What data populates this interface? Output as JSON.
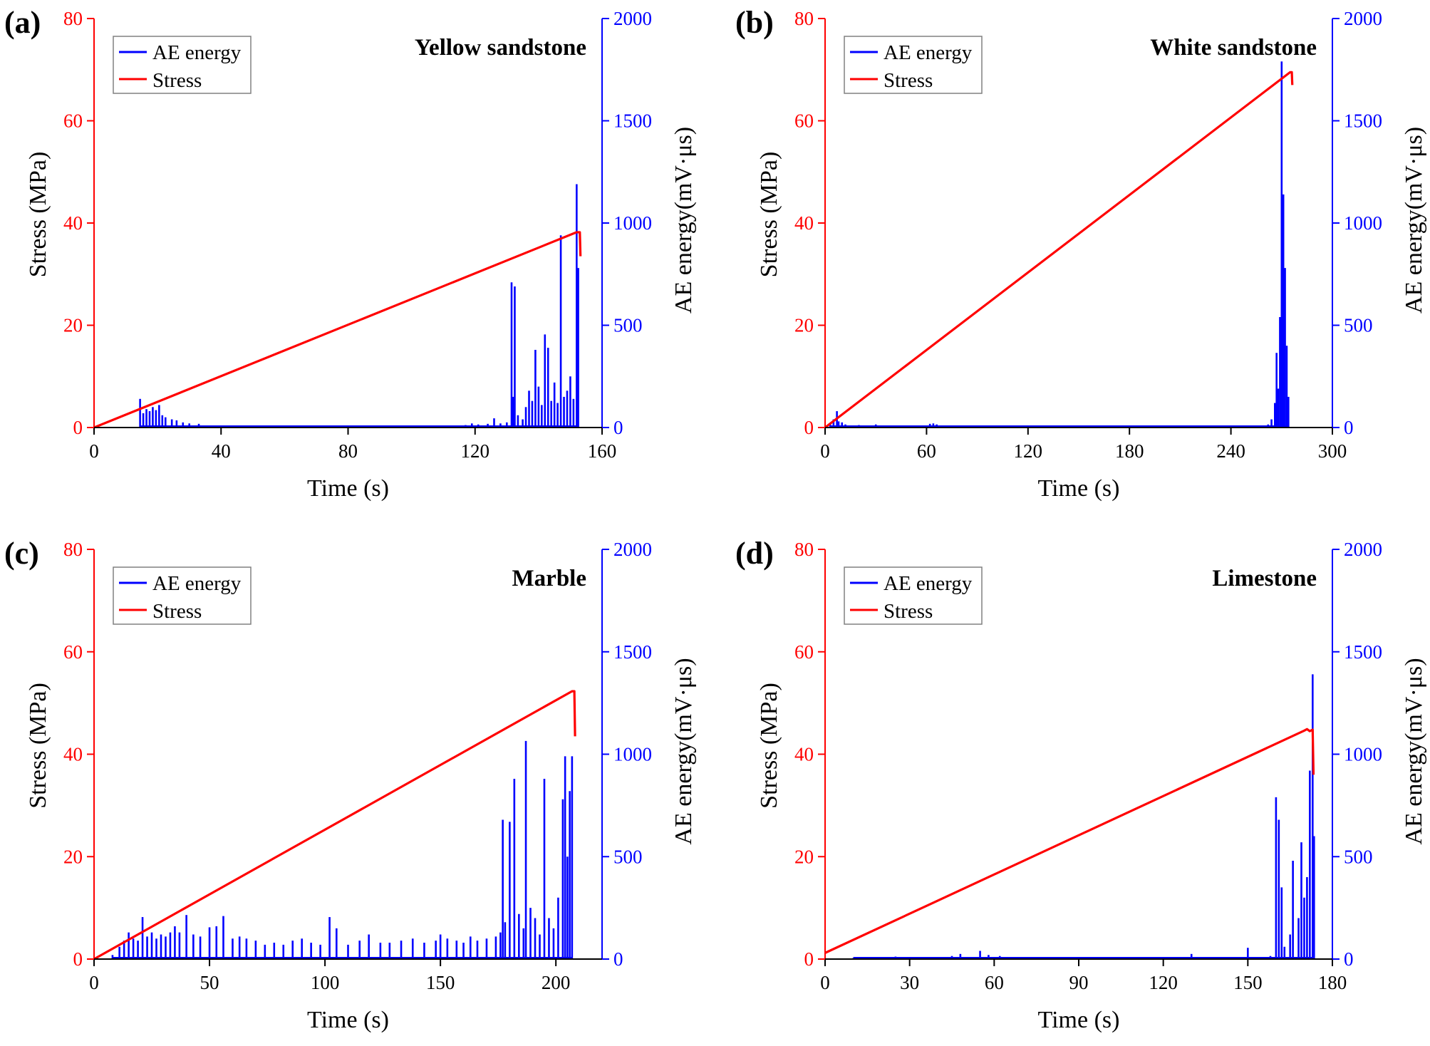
{
  "colors": {
    "stress": "#ff0000",
    "ae": "#0000ff",
    "axis": "#000000",
    "legend_border": "#808080"
  },
  "chart_data": [
    {
      "type": "line",
      "panel_label": "(a)",
      "title": "Yellow sandstone",
      "xlabel": "Time (s)",
      "ylabel": "Stress (MPa)",
      "y2label": "AE energy(mV·μs)",
      "xlim": [
        0,
        160
      ],
      "ylim": [
        0,
        80
      ],
      "y2lim": [
        0,
        2000
      ],
      "xticks": [
        0,
        40,
        80,
        120,
        160
      ],
      "yticks": [
        0,
        20,
        40,
        60,
        80
      ],
      "y2ticks": [
        0,
        500,
        1000,
        1500,
        2000
      ],
      "legend": [
        "AE energy",
        "Stress"
      ],
      "series": [
        {
          "name": "Stress",
          "axis": "left",
          "x": [
            0,
            152,
            153,
            153.2
          ],
          "y": [
            0,
            38.2,
            38.2,
            33.5
          ]
        },
        {
          "name": "AE energy",
          "axis": "right",
          "spikes": [
            [
              14.5,
              140
            ],
            [
              15.5,
              70
            ],
            [
              16.5,
              90
            ],
            [
              17.5,
              80
            ],
            [
              18.5,
              100
            ],
            [
              19.5,
              85
            ],
            [
              20.5,
              110
            ],
            [
              21.5,
              60
            ],
            [
              22.5,
              50
            ],
            [
              24.5,
              40
            ],
            [
              26,
              35
            ],
            [
              28,
              25
            ],
            [
              30,
              20
            ],
            [
              33,
              18
            ],
            [
              36,
              10
            ],
            [
              52,
              8
            ],
            [
              60,
              5
            ],
            [
              85,
              5
            ],
            [
              95,
              6
            ],
            [
              105,
              7
            ],
            [
              110,
              8
            ],
            [
              117,
              12
            ],
            [
              119,
              20
            ],
            [
              121,
              15
            ],
            [
              124,
              18
            ],
            [
              126,
              45
            ],
            [
              128,
              20
            ],
            [
              130,
              25
            ],
            [
              131.5,
              710
            ],
            [
              132,
              150
            ],
            [
              132.5,
              690
            ],
            [
              133.5,
              60
            ],
            [
              135,
              40
            ],
            [
              136,
              100
            ],
            [
              137,
              180
            ],
            [
              138,
              130
            ],
            [
              139,
              380
            ],
            [
              140,
              200
            ],
            [
              141,
              110
            ],
            [
              142,
              455
            ],
            [
              143,
              390
            ],
            [
              144,
              130
            ],
            [
              145,
              220
            ],
            [
              146,
              120
            ],
            [
              147,
              940
            ],
            [
              148,
              150
            ],
            [
              149,
              180
            ],
            [
              150,
              250
            ],
            [
              151,
              140
            ],
            [
              152,
              1190
            ],
            [
              152.5,
              780
            ]
          ]
        }
      ]
    },
    {
      "type": "line",
      "panel_label": "(b)",
      "title": "White sandstone",
      "xlabel": "Time (s)",
      "ylabel": "Stress (MPa)",
      "y2label": "AE energy(mV·μs)",
      "xlim": [
        0,
        300
      ],
      "ylim": [
        0,
        80
      ],
      "y2lim": [
        0,
        2000
      ],
      "xticks": [
        0,
        60,
        120,
        180,
        240,
        300
      ],
      "yticks": [
        0,
        20,
        40,
        60,
        80
      ],
      "y2ticks": [
        0,
        500,
        1000,
        1500,
        2000
      ],
      "legend": [
        "AE energy",
        "Stress"
      ],
      "series": [
        {
          "name": "Stress",
          "axis": "left",
          "x": [
            0,
            275,
            276,
            276.3
          ],
          "y": [
            0,
            69.5,
            69.5,
            67
          ]
        },
        {
          "name": "AE energy",
          "axis": "right",
          "spikes": [
            [
              3,
              20
            ],
            [
              5,
              40
            ],
            [
              7,
              80
            ],
            [
              8,
              30
            ],
            [
              10,
              25
            ],
            [
              12,
              15
            ],
            [
              20,
              12
            ],
            [
              30,
              15
            ],
            [
              40,
              8
            ],
            [
              62,
              18
            ],
            [
              64,
              20
            ],
            [
              66,
              15
            ],
            [
              90,
              5
            ],
            [
              140,
              8
            ],
            [
              160,
              6
            ],
            [
              200,
              5
            ],
            [
              250,
              8
            ],
            [
              262,
              15
            ],
            [
              264,
              40
            ],
            [
              266,
              120
            ],
            [
              267,
              365
            ],
            [
              268,
              190
            ],
            [
              269,
              540
            ],
            [
              270,
              1790
            ],
            [
              271,
              1140
            ],
            [
              272,
              780
            ],
            [
              273,
              400
            ],
            [
              274,
              150
            ]
          ]
        }
      ]
    },
    {
      "type": "line",
      "panel_label": "(c)",
      "title": "Marble",
      "xlabel": "Time (s)",
      "ylabel": "Stress (MPa)",
      "y2label": "AE energy(mV·μs)",
      "xlim": [
        0,
        220
      ],
      "ylim": [
        0,
        80
      ],
      "y2lim": [
        0,
        2000
      ],
      "xticks": [
        0,
        50,
        100,
        150,
        200
      ],
      "yticks": [
        0,
        20,
        40,
        60,
        80
      ],
      "y2ticks": [
        0,
        500,
        1000,
        1500,
        2000
      ],
      "legend": [
        "AE energy",
        "Stress"
      ],
      "series": [
        {
          "name": "Stress",
          "axis": "left",
          "x": [
            0,
            207,
            208,
            208.3
          ],
          "y": [
            0,
            52.3,
            52.3,
            43.5
          ]
        },
        {
          "name": "AE energy",
          "axis": "right",
          "spikes": [
            [
              8,
              20
            ],
            [
              11,
              60
            ],
            [
              13,
              90
            ],
            [
              15,
              130
            ],
            [
              17,
              100
            ],
            [
              19,
              90
            ],
            [
              21,
              205
            ],
            [
              23,
              110
            ],
            [
              25,
              130
            ],
            [
              27,
              100
            ],
            [
              29,
              120
            ],
            [
              31,
              110
            ],
            [
              33,
              130
            ],
            [
              35,
              160
            ],
            [
              37,
              130
            ],
            [
              40,
              215
            ],
            [
              43,
              120
            ],
            [
              46,
              110
            ],
            [
              50,
              155
            ],
            [
              53,
              160
            ],
            [
              56,
              210
            ],
            [
              60,
              100
            ],
            [
              63,
              110
            ],
            [
              66,
              100
            ],
            [
              70,
              90
            ],
            [
              74,
              70
            ],
            [
              78,
              80
            ],
            [
              82,
              70
            ],
            [
              86,
              90
            ],
            [
              90,
              100
            ],
            [
              94,
              80
            ],
            [
              98,
              70
            ],
            [
              102,
              205
            ],
            [
              105,
              150
            ],
            [
              110,
              70
            ],
            [
              115,
              90
            ],
            [
              119,
              120
            ],
            [
              124,
              80
            ],
            [
              128,
              80
            ],
            [
              133,
              90
            ],
            [
              138,
              100
            ],
            [
              143,
              80
            ],
            [
              148,
              90
            ],
            [
              150,
              120
            ],
            [
              153,
              100
            ],
            [
              157,
              90
            ],
            [
              160,
              80
            ],
            [
              163,
              110
            ],
            [
              166,
              90
            ],
            [
              170,
              100
            ],
            [
              174,
              110
            ],
            [
              176,
              130
            ],
            [
              177,
              680
            ],
            [
              178,
              180
            ],
            [
              180,
              670
            ],
            [
              182,
              880
            ],
            [
              184,
              220
            ],
            [
              186,
              150
            ],
            [
              187,
              1065
            ],
            [
              189,
              250
            ],
            [
              191,
              200
            ],
            [
              193,
              120
            ],
            [
              195,
              880
            ],
            [
              197,
              200
            ],
            [
              199,
              150
            ],
            [
              201,
              300
            ],
            [
              203,
              780
            ],
            [
              204,
              990
            ],
            [
              205,
              500
            ],
            [
              206,
              820
            ],
            [
              207,
              990
            ]
          ]
        }
      ]
    },
    {
      "type": "line",
      "panel_label": "(d)",
      "title": "Limestone",
      "xlabel": "Time (s)",
      "ylabel": "Stress (MPa)",
      "y2label": "AE energy(mV·μs)",
      "xlim": [
        0,
        180
      ],
      "ylim": [
        0,
        80
      ],
      "y2lim": [
        0,
        2000
      ],
      "xticks": [
        0,
        30,
        60,
        90,
        120,
        150,
        180
      ],
      "yticks": [
        0,
        20,
        40,
        60,
        80
      ],
      "y2ticks": [
        0,
        500,
        1000,
        1500,
        2000
      ],
      "legend": [
        "AE energy",
        "Stress"
      ],
      "series": [
        {
          "name": "Stress",
          "axis": "left",
          "x": [
            0,
            170,
            171,
            172,
            173,
            173.3
          ],
          "y": [
            1.2,
            44.6,
            44.9,
            44.5,
            44.8,
            36
          ]
        },
        {
          "name": "AE energy",
          "axis": "right",
          "spikes": [
            [
              10,
              5
            ],
            [
              25,
              12
            ],
            [
              30,
              8
            ],
            [
              40,
              10
            ],
            [
              45,
              15
            ],
            [
              48,
              25
            ],
            [
              52,
              10
            ],
            [
              55,
              40
            ],
            [
              58,
              20
            ],
            [
              62,
              15
            ],
            [
              68,
              10
            ],
            [
              80,
              5
            ],
            [
              100,
              5
            ],
            [
              130,
              25
            ],
            [
              150,
              55
            ],
            [
              155,
              8
            ],
            [
              158,
              15
            ],
            [
              160,
              790
            ],
            [
              161,
              680
            ],
            [
              162,
              350
            ],
            [
              163,
              60
            ],
            [
              165,
              120
            ],
            [
              166,
              480
            ],
            [
              168,
              200
            ],
            [
              169,
              570
            ],
            [
              170,
              300
            ],
            [
              171,
              400
            ],
            [
              172,
              920
            ],
            [
              173,
              1390
            ],
            [
              173.5,
              600
            ]
          ]
        }
      ]
    }
  ]
}
